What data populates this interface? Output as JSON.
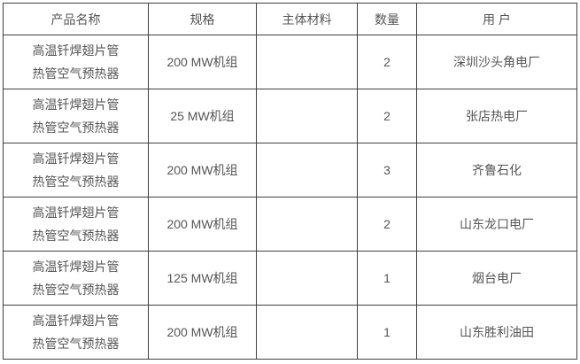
{
  "colors": {
    "border": "#404040",
    "text": "#555555",
    "background": "#ffffff"
  },
  "table": {
    "columns": [
      {
        "label": "产品名称"
      },
      {
        "label": "规格"
      },
      {
        "label": "主体材料"
      },
      {
        "label": "数量"
      },
      {
        "label": "用 户"
      }
    ],
    "rows": [
      {
        "product": "高温钎焊翅片管\n热管空气预热器",
        "spec": "200 MW机组",
        "material": "",
        "quantity": "2",
        "customer": "深圳沙头角电厂"
      },
      {
        "product": "高温钎焊翅片管\n热管空气预热器",
        "spec": "25 MW机组",
        "material": "",
        "quantity": "2",
        "customer": "张店热电厂"
      },
      {
        "product": "高温钎焊翅片管\n热管空气预热器",
        "spec": "200 MW机组",
        "material": "",
        "quantity": "3",
        "customer": "齐鲁石化"
      },
      {
        "product": "高温钎焊翅片管\n热管空气预热器",
        "spec": "200 MW机组",
        "material": "",
        "quantity": "2",
        "customer": "山东龙口电厂"
      },
      {
        "product": "高温钎焊翅片管\n热管空气预热器",
        "spec": "125 MW机组",
        "material": "",
        "quantity": "1",
        "customer": "烟台电厂"
      },
      {
        "product": "高温钎焊翅片管\n热管空气预热器",
        "spec": "200 MW机组",
        "material": "",
        "quantity": "1",
        "customer": "山东胜利油田"
      }
    ]
  }
}
